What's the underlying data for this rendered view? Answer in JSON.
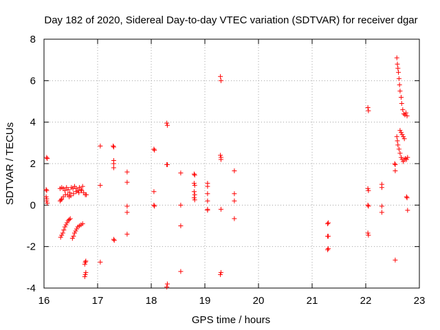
{
  "chart_data": {
    "type": "scatter",
    "title": "Day 182 of 2020, Sidereal Day-to-day VTEC variation (SDTVAR) for receiver dgar",
    "xlabel": "GPS time / hours",
    "ylabel": "SDTVAR / TECUs",
    "xlim": [
      16,
      23
    ],
    "ylim": [
      -4,
      8
    ],
    "xticks": [
      "16",
      "17",
      "18",
      "19",
      "20",
      "21",
      "22",
      "23"
    ],
    "yticks": [
      "-4",
      "-2",
      "0",
      "2",
      "4",
      "6",
      "8"
    ],
    "grid": true,
    "marker": "+",
    "marker_color": "#ff0000",
    "series": [
      {
        "name": "SDTVAR",
        "points": [
          [
            16.05,
            2.3
          ],
          [
            16.06,
            2.25
          ],
          [
            16.04,
            0.75
          ],
          [
            16.05,
            0.7
          ],
          [
            16.04,
            0.4
          ],
          [
            16.05,
            0.3
          ],
          [
            16.05,
            0.2
          ],
          [
            16.06,
            0.1
          ],
          [
            16.3,
            0.8
          ],
          [
            16.33,
            0.85
          ],
          [
            16.36,
            0.8
          ],
          [
            16.39,
            0.7
          ],
          [
            16.42,
            0.85
          ],
          [
            16.45,
            0.75
          ],
          [
            16.48,
            0.6
          ],
          [
            16.51,
            0.85
          ],
          [
            16.54,
            0.8
          ],
          [
            16.57,
            0.9
          ],
          [
            16.6,
            0.8
          ],
          [
            16.63,
            0.7
          ],
          [
            16.66,
            0.85
          ],
          [
            16.69,
            0.75
          ],
          [
            16.72,
            0.9
          ],
          [
            16.74,
            0.6
          ],
          [
            16.77,
            0.5
          ],
          [
            16.79,
            0.5
          ],
          [
            16.33,
            0.3
          ],
          [
            16.36,
            0.4
          ],
          [
            16.4,
            0.5
          ],
          [
            16.44,
            0.5
          ],
          [
            16.47,
            0.4
          ],
          [
            16.5,
            0.45
          ],
          [
            16.55,
            0.55
          ],
          [
            16.6,
            0.65
          ],
          [
            16.65,
            0.6
          ],
          [
            16.7,
            0.7
          ],
          [
            16.3,
            0.2
          ],
          [
            16.32,
            0.25
          ],
          [
            16.31,
            -1.55
          ],
          [
            16.33,
            -1.45
          ],
          [
            16.35,
            -1.35
          ],
          [
            16.37,
            -1.2
          ],
          [
            16.39,
            -1.05
          ],
          [
            16.41,
            -0.95
          ],
          [
            16.43,
            -0.85
          ],
          [
            16.45,
            -0.75
          ],
          [
            16.47,
            -0.7
          ],
          [
            16.49,
            -0.65
          ],
          [
            16.53,
            -1.6
          ],
          [
            16.55,
            -1.5
          ],
          [
            16.57,
            -1.35
          ],
          [
            16.59,
            -1.25
          ],
          [
            16.61,
            -1.15
          ],
          [
            16.63,
            -1.05
          ],
          [
            16.66,
            -1.0
          ],
          [
            16.69,
            -0.95
          ],
          [
            16.72,
            -0.9
          ],
          [
            16.76,
            -2.85
          ],
          [
            16.77,
            -2.75
          ],
          [
            16.78,
            -2.7
          ],
          [
            16.76,
            -3.45
          ],
          [
            16.77,
            -3.35
          ],
          [
            16.78,
            -3.25
          ],
          [
            17.05,
            2.85
          ],
          [
            17.05,
            0.95
          ],
          [
            17.05,
            -2.75
          ],
          [
            17.29,
            2.85
          ],
          [
            17.3,
            2.8
          ],
          [
            17.3,
            2.15
          ],
          [
            17.3,
            2.0
          ],
          [
            17.3,
            1.8
          ],
          [
            17.3,
            -1.65
          ],
          [
            17.31,
            -1.7
          ],
          [
            17.55,
            1.6
          ],
          [
            17.55,
            1.1
          ],
          [
            17.55,
            -0.05
          ],
          [
            17.55,
            -0.35
          ],
          [
            17.55,
            -1.4
          ],
          [
            18.05,
            2.7
          ],
          [
            18.06,
            2.65
          ],
          [
            18.05,
            0.65
          ],
          [
            18.05,
            0.0
          ],
          [
            18.06,
            -0.05
          ],
          [
            18.29,
            3.95
          ],
          [
            18.3,
            3.85
          ],
          [
            18.29,
            1.95
          ],
          [
            18.3,
            1.95
          ],
          [
            18.3,
            -3.8
          ],
          [
            18.29,
            -3.95
          ],
          [
            18.55,
            1.55
          ],
          [
            18.55,
            0.0
          ],
          [
            18.55,
            -1.0
          ],
          [
            18.55,
            -3.2
          ],
          [
            18.8,
            1.5
          ],
          [
            18.81,
            1.45
          ],
          [
            18.8,
            1.05
          ],
          [
            18.81,
            0.95
          ],
          [
            18.8,
            0.65
          ],
          [
            18.81,
            0.5
          ],
          [
            18.8,
            0.35
          ],
          [
            18.81,
            0.25
          ],
          [
            19.05,
            1.05
          ],
          [
            19.05,
            0.9
          ],
          [
            19.05,
            0.55
          ],
          [
            19.05,
            0.2
          ],
          [
            19.05,
            -0.2
          ],
          [
            19.05,
            -0.25
          ],
          [
            19.29,
            6.2
          ],
          [
            19.3,
            6.0
          ],
          [
            19.29,
            2.4
          ],
          [
            19.3,
            2.3
          ],
          [
            19.3,
            2.2
          ],
          [
            19.3,
            -0.2
          ],
          [
            19.3,
            -3.25
          ],
          [
            19.29,
            -3.35
          ],
          [
            19.55,
            1.65
          ],
          [
            19.55,
            0.55
          ],
          [
            19.55,
            0.2
          ],
          [
            19.55,
            -0.65
          ],
          [
            21.29,
            -0.9
          ],
          [
            21.3,
            -0.85
          ],
          [
            21.29,
            -1.5
          ],
          [
            21.3,
            -1.5
          ],
          [
            21.29,
            -2.15
          ],
          [
            21.3,
            -2.1
          ],
          [
            22.04,
            4.7
          ],
          [
            22.05,
            4.55
          ],
          [
            22.04,
            0.8
          ],
          [
            22.05,
            0.7
          ],
          [
            22.04,
            0.0
          ],
          [
            22.05,
            -0.05
          ],
          [
            22.04,
            -1.35
          ],
          [
            22.05,
            -1.45
          ],
          [
            22.3,
            1.0
          ],
          [
            22.3,
            0.85
          ],
          [
            22.3,
            -0.05
          ],
          [
            22.3,
            -0.35
          ],
          [
            22.54,
            2.0
          ],
          [
            22.55,
            1.95
          ],
          [
            22.55,
            1.65
          ],
          [
            22.55,
            -2.65
          ],
          [
            22.58,
            7.1
          ],
          [
            22.59,
            6.8
          ],
          [
            22.6,
            6.6
          ],
          [
            22.61,
            6.4
          ],
          [
            22.62,
            6.1
          ],
          [
            22.63,
            5.8
          ],
          [
            22.64,
            5.5
          ],
          [
            22.66,
            5.2
          ],
          [
            22.67,
            4.9
          ],
          [
            22.69,
            4.6
          ],
          [
            22.71,
            4.4
          ],
          [
            22.73,
            4.35
          ],
          [
            22.75,
            4.45
          ],
          [
            22.77,
            4.3
          ],
          [
            22.58,
            3.3
          ],
          [
            22.59,
            3.1
          ],
          [
            22.6,
            2.9
          ],
          [
            22.62,
            2.7
          ],
          [
            22.64,
            2.5
          ],
          [
            22.66,
            2.3
          ],
          [
            22.68,
            2.2
          ],
          [
            22.7,
            2.1
          ],
          [
            22.72,
            2.2
          ],
          [
            22.74,
            2.25
          ],
          [
            22.76,
            2.2
          ],
          [
            22.78,
            2.3
          ],
          [
            22.64,
            3.6
          ],
          [
            22.66,
            3.5
          ],
          [
            22.68,
            3.4
          ],
          [
            22.7,
            3.3
          ],
          [
            22.72,
            3.2
          ],
          [
            22.76,
            0.4
          ],
          [
            22.77,
            0.35
          ],
          [
            22.78,
            -0.25
          ]
        ]
      }
    ]
  }
}
